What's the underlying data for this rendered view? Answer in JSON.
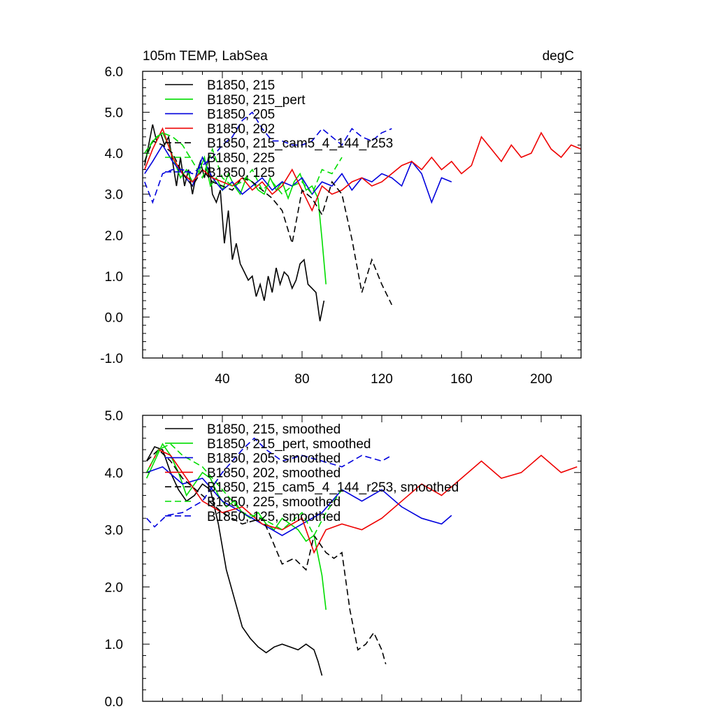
{
  "chart_data": [
    {
      "type": "line",
      "title": "105m TEMP, LabSea",
      "units": "degC",
      "xlim": [
        0,
        220
      ],
      "ylim": [
        -1.0,
        6.0
      ],
      "xticks": [
        40,
        80,
        120,
        160,
        200
      ],
      "xtick_labels": [
        "40",
        "80",
        "120",
        "160",
        "200"
      ],
      "yticks": [
        -1,
        0,
        1,
        2,
        3,
        4,
        5,
        6
      ],
      "ytick_labels": [
        "-1.0",
        "0.0",
        "1.0",
        "2.0",
        "3.0",
        "4.0",
        "5.0",
        "6.0"
      ],
      "legend": [
        "B1850, 215",
        "B1850, 215_pert",
        "B1850, 205",
        "B1850, 202",
        "B1850, 215_cam5_4_144_r253",
        "B1850, 225",
        "B1850, 125"
      ],
      "series": [
        {
          "name": "B1850, 215",
          "color": "#000000",
          "dash": "solid",
          "x": [
            1,
            3,
            5,
            7,
            9,
            11,
            13,
            15,
            17,
            19,
            21,
            23,
            25,
            27,
            29,
            31,
            33,
            35,
            37,
            39,
            41,
            43,
            45,
            47,
            49,
            51,
            53,
            55,
            57,
            59,
            61,
            63,
            65,
            67,
            69,
            71,
            73,
            75,
            77,
            79,
            81,
            83,
            85,
            87,
            89,
            91
          ],
          "y": [
            3.7,
            4.2,
            4.7,
            4.3,
            4.5,
            4.2,
            4.4,
            3.8,
            3.2,
            3.9,
            3.2,
            3.6,
            3.0,
            3.5,
            3.8,
            3.4,
            3.9,
            3.0,
            2.8,
            3.1,
            1.8,
            2.6,
            1.4,
            1.8,
            1.3,
            1.1,
            0.9,
            1.0,
            0.5,
            0.8,
            0.4,
            1.0,
            0.6,
            1.2,
            0.8,
            1.1,
            1.0,
            0.7,
            0.9,
            1.3,
            1.4,
            0.8,
            0.7,
            0.6,
            -0.1,
            0.4
          ]
        },
        {
          "name": "B1850, 215_pert",
          "color": "#00dd00",
          "dash": "solid",
          "x": [
            1,
            4,
            7,
            10,
            13,
            16,
            19,
            22,
            25,
            28,
            31,
            34,
            37,
            40,
            43,
            46,
            49,
            52,
            55,
            58,
            61,
            64,
            67,
            70,
            73,
            76,
            79,
            82,
            85,
            88,
            90,
            92
          ],
          "y": [
            3.8,
            4.2,
            4.4,
            4.5,
            4.2,
            3.8,
            3.4,
            3.6,
            3.3,
            3.5,
            3.9,
            3.2,
            3.4,
            3.1,
            3.5,
            3.2,
            3.0,
            3.4,
            3.3,
            3.1,
            3.0,
            3.4,
            3.1,
            3.3,
            2.9,
            3.3,
            3.5,
            3.1,
            3.2,
            2.9,
            1.9,
            0.8
          ]
        },
        {
          "name": "B1850, 205",
          "color": "#0000dd",
          "dash": "solid",
          "x": [
            1,
            5,
            10,
            15,
            20,
            25,
            30,
            35,
            40,
            45,
            50,
            55,
            60,
            65,
            70,
            75,
            80,
            85,
            90,
            95,
            100,
            105,
            110,
            115,
            120,
            125,
            130,
            135,
            140,
            145,
            150,
            155
          ],
          "y": [
            3.5,
            3.8,
            4.2,
            3.8,
            3.5,
            3.2,
            3.9,
            3.4,
            3.1,
            3.3,
            3.0,
            3.2,
            3.4,
            3.1,
            3.3,
            3.2,
            3.4,
            3.0,
            3.3,
            3.2,
            3.5,
            3.1,
            3.4,
            3.3,
            3.5,
            3.4,
            3.2,
            3.8,
            3.5,
            2.8,
            3.4,
            3.3
          ]
        },
        {
          "name": "B1850, 202",
          "color": "#ee0000",
          "dash": "solid",
          "x": [
            1,
            5,
            10,
            15,
            20,
            25,
            30,
            35,
            40,
            45,
            50,
            55,
            60,
            65,
            70,
            75,
            80,
            85,
            90,
            95,
            100,
            105,
            110,
            115,
            120,
            125,
            130,
            135,
            140,
            145,
            150,
            155,
            160,
            165,
            170,
            175,
            180,
            185,
            190,
            195,
            200,
            205,
            210,
            215,
            220
          ],
          "y": [
            3.6,
            4.1,
            4.6,
            3.9,
            3.5,
            3.3,
            3.6,
            3.4,
            3.3,
            3.2,
            3.4,
            3.1,
            3.3,
            3.0,
            3.2,
            3.6,
            3.1,
            2.6,
            3.2,
            3.0,
            3.1,
            3.3,
            3.4,
            3.2,
            3.3,
            3.5,
            3.7,
            3.8,
            3.6,
            3.9,
            3.6,
            3.8,
            3.5,
            3.7,
            4.4,
            4.1,
            3.8,
            4.2,
            3.9,
            4.0,
            4.5,
            4.1,
            3.9,
            4.2,
            4.1
          ]
        },
        {
          "name": "B1850, 215_cam5_4_144_r253",
          "color": "#000000",
          "dash": "dashed",
          "x": [
            1,
            5,
            10,
            15,
            20,
            25,
            30,
            35,
            40,
            45,
            50,
            55,
            60,
            65,
            70,
            75,
            80,
            85,
            90,
            95,
            100,
            105,
            110,
            115,
            120,
            125
          ],
          "y": [
            3.8,
            4.3,
            4.2,
            4.0,
            3.5,
            3.2,
            3.6,
            3.3,
            3.2,
            3.1,
            3.4,
            3.3,
            3.1,
            2.9,
            2.6,
            1.8,
            3.1,
            2.9,
            2.5,
            3.3,
            3.0,
            1.9,
            0.6,
            1.4,
            0.8,
            0.3
          ]
        },
        {
          "name": "B1850, 225",
          "color": "#00dd00",
          "dash": "dashed",
          "x": [
            1,
            5,
            10,
            15,
            20,
            25,
            30,
            35,
            40,
            45,
            50,
            55,
            60,
            65,
            70,
            75,
            80,
            85,
            90,
            95,
            100
          ],
          "y": [
            4.0,
            4.3,
            4.5,
            4.4,
            4.2,
            3.8,
            3.4,
            4.1,
            3.4,
            3.2,
            3.3,
            3.6,
            3.1,
            3.3,
            3.0,
            3.2,
            3.3,
            3.0,
            3.6,
            3.5,
            3.9
          ]
        },
        {
          "name": "B1850, 125",
          "color": "#0000dd",
          "dash": "dashed",
          "x": [
            1,
            5,
            10,
            15,
            20,
            25,
            30,
            35,
            40,
            45,
            50,
            55,
            60,
            65,
            70,
            75,
            80,
            85,
            90,
            95,
            100,
            105,
            110,
            115,
            120,
            125
          ],
          "y": [
            3.3,
            2.8,
            3.5,
            3.6,
            3.6,
            3.5,
            3.7,
            3.9,
            4.2,
            4.4,
            4.8,
            5.0,
            4.6,
            4.3,
            4.3,
            4.2,
            4.2,
            4.3,
            4.6,
            4.4,
            4.2,
            4.6,
            4.4,
            4.3,
            4.5,
            4.6
          ]
        }
      ]
    },
    {
      "type": "line",
      "xlim": [
        0,
        220
      ],
      "ylim": [
        0.0,
        5.0
      ],
      "xticks": [
        40,
        80,
        120,
        160,
        200
      ],
      "yticks": [
        0,
        1,
        2,
        3,
        4,
        5
      ],
      "ytick_labels": [
        "0.0",
        "1.0",
        "2.0",
        "3.0",
        "4.0",
        "5.0"
      ],
      "legend": [
        "B1850, 215, smoothed",
        "B1850, 215_pert, smoothed",
        "B1850, 205, smoothed",
        "B1850, 202, smoothed",
        "B1850, 215_cam5_4_144_r253, smoothed",
        "B1850, 225, smoothed",
        "B1850, 125, smoothed"
      ],
      "series": [
        {
          "name": "B1850, 215, smoothed",
          "color": "#000000",
          "dash": "solid",
          "x": [
            2,
            6,
            10,
            14,
            18,
            22,
            26,
            30,
            34,
            38,
            42,
            46,
            50,
            54,
            58,
            62,
            66,
            70,
            74,
            78,
            82,
            86,
            88,
            90
          ],
          "y": [
            4.2,
            4.45,
            4.4,
            4.0,
            3.7,
            3.5,
            3.6,
            3.8,
            3.7,
            3.1,
            2.3,
            1.8,
            1.3,
            1.1,
            0.95,
            0.85,
            0.95,
            1.0,
            0.95,
            0.9,
            1.0,
            0.9,
            0.7,
            0.45
          ]
        },
        {
          "name": "B1850, 215_pert, smoothed",
          "color": "#00dd00",
          "dash": "solid",
          "x": [
            2,
            6,
            10,
            14,
            18,
            22,
            26,
            30,
            34,
            38,
            42,
            46,
            50,
            54,
            58,
            62,
            66,
            70,
            74,
            78,
            82,
            86,
            90,
            92
          ],
          "y": [
            3.9,
            4.2,
            4.5,
            4.3,
            4.0,
            3.6,
            3.8,
            4.0,
            3.9,
            3.6,
            3.4,
            3.5,
            3.3,
            3.2,
            3.3,
            3.1,
            3.0,
            3.2,
            3.1,
            3.0,
            2.8,
            2.9,
            2.2,
            1.6
          ]
        },
        {
          "name": "B1850, 205, smoothed",
          "color": "#0000dd",
          "dash": "solid",
          "x": [
            2,
            10,
            20,
            30,
            40,
            50,
            60,
            70,
            80,
            90,
            100,
            110,
            120,
            130,
            140,
            150,
            155
          ],
          "y": [
            4.0,
            4.1,
            3.8,
            3.9,
            3.5,
            3.3,
            3.1,
            2.9,
            3.1,
            3.3,
            3.7,
            3.5,
            3.7,
            3.4,
            3.2,
            3.1,
            3.25
          ]
        },
        {
          "name": "B1850, 202, smoothed",
          "color": "#ee0000",
          "dash": "solid",
          "x": [
            2,
            8,
            14,
            20,
            30,
            40,
            50,
            60,
            70,
            80,
            86,
            92,
            100,
            110,
            120,
            130,
            140,
            150,
            160,
            170,
            180,
            190,
            200,
            210,
            218
          ],
          "y": [
            4.0,
            4.4,
            4.3,
            4.0,
            3.5,
            3.3,
            3.4,
            3.1,
            3.0,
            3.2,
            2.6,
            3.0,
            3.1,
            3.0,
            3.2,
            3.5,
            3.8,
            3.6,
            3.9,
            4.2,
            3.9,
            4.0,
            4.3,
            4.0,
            4.1
          ]
        },
        {
          "name": "B1850, 215_cam5_4_144_r253, smoothed",
          "color": "#000000",
          "dash": "dashed",
          "x": [
            2,
            8,
            14,
            20,
            30,
            40,
            50,
            60,
            64,
            70,
            76,
            82,
            86,
            92,
            96,
            100,
            104,
            108,
            112,
            116,
            120,
            122
          ],
          "y": [
            4.2,
            4.4,
            4.2,
            3.9,
            3.6,
            3.3,
            3.1,
            3.2,
            2.9,
            2.4,
            2.5,
            2.3,
            2.9,
            2.6,
            2.5,
            2.6,
            1.6,
            0.9,
            1.0,
            1.2,
            0.9,
            0.65
          ]
        },
        {
          "name": "B1850, 225, smoothed",
          "color": "#00dd00",
          "dash": "dashed",
          "x": [
            2,
            8,
            14,
            20,
            30,
            40,
            50,
            60,
            70,
            80,
            86,
            92,
            100
          ],
          "y": [
            4.0,
            4.4,
            4.5,
            4.3,
            4.1,
            3.7,
            3.3,
            3.2,
            3.0,
            3.3,
            2.9,
            3.3,
            3.7
          ]
        },
        {
          "name": "B1850, 125, smoothed",
          "color": "#0000dd",
          "dash": "dashed",
          "x": [
            2,
            6,
            12,
            20,
            30,
            40,
            50,
            56,
            62,
            70,
            80,
            90,
            100,
            110,
            120,
            125
          ],
          "y": [
            3.2,
            3.05,
            3.25,
            3.3,
            3.5,
            4.0,
            4.4,
            4.6,
            4.4,
            4.2,
            4.3,
            4.2,
            4.1,
            4.3,
            4.2,
            4.3
          ]
        }
      ]
    }
  ]
}
